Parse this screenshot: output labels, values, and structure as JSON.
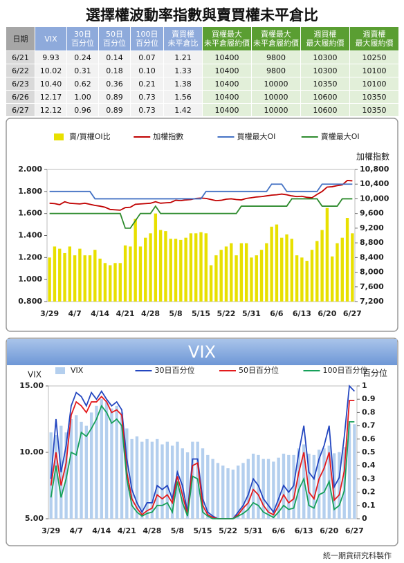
{
  "title": "選擇權波動率指數與賣買權未平倉比",
  "table": {
    "header": [
      "日期",
      "VIX",
      "30日\n百分位",
      "50日\n百分位",
      "100日\n百分位",
      "賣買權\n未平倉比",
      "買權最大\n未平倉履約價",
      "賣權最大\n未平倉履約價",
      "週買權\n最大履約價",
      "週賣權\n最大履約價"
    ],
    "rows": [
      [
        "6/21",
        "9.93",
        "0.24",
        "0.14",
        "0.07",
        "1.21",
        "10400",
        "9800",
        "10300",
        "10250"
      ],
      [
        "6/22",
        "10.02",
        "0.31",
        "0.18",
        "0.10",
        "1.33",
        "10400",
        "9800",
        "10300",
        "10100"
      ],
      [
        "6/23",
        "10.40",
        "0.62",
        "0.36",
        "0.21",
        "1.38",
        "10400",
        "10000",
        "10350",
        "10100"
      ],
      [
        "6/26",
        "12.17",
        "1.00",
        "0.89",
        "0.73",
        "1.56",
        "10400",
        "10000",
        "10600",
        "10350"
      ],
      [
        "6/27",
        "12.12",
        "0.96",
        "0.89",
        "0.73",
        "1.42",
        "10400",
        "10000",
        "10600",
        "10350"
      ]
    ]
  },
  "chart_data": [
    {
      "type": "combo",
      "y2label": "加權指數",
      "categories": [
        "3/29",
        null,
        null,
        null,
        null,
        "4/7",
        null,
        null,
        null,
        null,
        "4/14",
        null,
        null,
        null,
        null,
        "4/21",
        null,
        null,
        null,
        null,
        "4/28",
        null,
        null,
        null,
        null,
        "5/8",
        null,
        null,
        null,
        null,
        "5/15",
        null,
        null,
        null,
        null,
        "5/22",
        null,
        null,
        null,
        null,
        "5/31",
        null,
        null,
        null,
        null,
        "6/6",
        null,
        null,
        null,
        null,
        "6/13",
        null,
        null,
        null,
        null,
        "6/20",
        null,
        null,
        null,
        null,
        "6/27"
      ],
      "ylim": [
        0.8,
        2.0
      ],
      "yticks": [
        {
          "value": 0.8,
          "label": "0.800"
        },
        {
          "value": 1.0,
          "label": "1.000"
        },
        {
          "value": 1.2,
          "label": "1.200"
        },
        {
          "value": 1.4,
          "label": "1.400"
        },
        {
          "value": 1.6,
          "label": "1.600"
        },
        {
          "value": 1.8,
          "label": "1.800"
        },
        {
          "value": 2.0,
          "label": "2.000"
        }
      ],
      "y2lim": [
        7200,
        10800
      ],
      "y2ticks": [
        {
          "value": 7200,
          "label": "7,200"
        },
        {
          "value": 7600,
          "label": "7,600"
        },
        {
          "value": 8000,
          "label": "8,000"
        },
        {
          "value": 8400,
          "label": "8,400"
        },
        {
          "value": 8800,
          "label": "8,800"
        },
        {
          "value": 9200,
          "label": "9,200"
        },
        {
          "value": 9600,
          "label": "9,600"
        },
        {
          "value": 10000,
          "label": "10,000"
        },
        {
          "value": 10400,
          "label": "10,400"
        },
        {
          "value": 10800,
          "label": "10,800"
        }
      ],
      "series": [
        {
          "name": "賣/買權OI比",
          "type": "bar",
          "color": "#e8e000",
          "values": [
            1.2,
            1.3,
            1.28,
            1.24,
            1.3,
            1.22,
            1.28,
            1.22,
            1.22,
            1.27,
            1.19,
            1.15,
            1.13,
            1.15,
            1.15,
            1.31,
            1.3,
            1.55,
            1.3,
            1.38,
            1.42,
            1.6,
            1.45,
            1.44,
            1.37,
            1.37,
            1.36,
            1.38,
            1.42,
            1.42,
            1.43,
            1.42,
            1.13,
            1.22,
            1.27,
            1.3,
            1.33,
            1.22,
            1.33,
            1.33,
            1.2,
            1.22,
            1.27,
            1.33,
            1.48,
            1.5,
            1.38,
            1.41,
            1.37,
            1.22,
            1.2,
            1.17,
            1.27,
            1.35,
            1.45,
            1.65,
            1.21,
            1.33,
            1.38,
            1.56,
            1.42
          ]
        },
        {
          "name": "加權指數",
          "type": "line",
          "axis": "y2",
          "color": "#c00000",
          "values": [
            9880,
            9870,
            9840,
            9920,
            9880,
            9870,
            9860,
            9880,
            9850,
            9820,
            9800,
            9770,
            9710,
            9700,
            9690,
            9760,
            9770,
            9850,
            9860,
            9870,
            9880,
            9920,
            9880,
            9890,
            9900,
            9960,
            9950,
            9970,
            9980,
            10010,
            10020,
            10010,
            9980,
            9950,
            9960,
            9990,
            10000,
            9980,
            9970,
            10010,
            10030,
            10050,
            10060,
            10080,
            10100,
            10110,
            10130,
            10110,
            10080,
            10060,
            10070,
            10040,
            10030,
            10120,
            10200,
            10320,
            10330,
            10360,
            10380,
            10500,
            10490
          ]
        },
        {
          "name": "買權最大OI",
          "type": "line",
          "axis": "y2",
          "color": "#4472c4",
          "values": [
            10200,
            10200,
            10200,
            10200,
            10200,
            10200,
            10200,
            10200,
            10200,
            10000,
            10000,
            10000,
            10000,
            10000,
            10000,
            10000,
            10000,
            10000,
            10000,
            10000,
            10000,
            10000,
            10000,
            10000,
            10000,
            10000,
            10000,
            10000,
            10000,
            10000,
            10000,
            10200,
            10200,
            10200,
            10200,
            10200,
            10200,
            10200,
            10200,
            10200,
            10200,
            10200,
            10200,
            10200,
            10400,
            10400,
            10400,
            10200,
            10200,
            10200,
            10200,
            10200,
            10200,
            10200,
            10400,
            10400,
            10400,
            10400,
            10400,
            10400,
            10400
          ]
        },
        {
          "name": "賣權最大OI",
          "type": "line",
          "axis": "y2",
          "color": "#2e8b2e",
          "values": [
            9600,
            9600,
            9600,
            9600,
            9600,
            9600,
            9600,
            9600,
            9600,
            9600,
            9600,
            9600,
            9600,
            9600,
            9600,
            9200,
            9200,
            9400,
            9600,
            9600,
            9600,
            9800,
            9600,
            9600,
            9600,
            9600,
            9600,
            9600,
            9600,
            9600,
            9600,
            9600,
            9600,
            9600,
            9600,
            9600,
            9600,
            9600,
            9800,
            9800,
            9800,
            9800,
            9800,
            9800,
            9800,
            9800,
            9800,
            9800,
            10000,
            10000,
            10000,
            10000,
            10000,
            10000,
            9800,
            9800,
            9800,
            9800,
            10000,
            10000,
            10000
          ]
        }
      ]
    },
    {
      "type": "combo",
      "title": "VIX",
      "ylabel": "VIX",
      "y2label": "百分位",
      "categories": [
        "3/29",
        null,
        null,
        null,
        null,
        "4/7",
        null,
        null,
        null,
        null,
        "4/14",
        null,
        null,
        null,
        null,
        "4/21",
        null,
        null,
        null,
        null,
        "4/28",
        null,
        null,
        null,
        null,
        "5/8",
        null,
        null,
        null,
        null,
        "5/15",
        null,
        null,
        null,
        null,
        "5/22",
        null,
        null,
        null,
        null,
        "5/31",
        null,
        null,
        null,
        null,
        "6/6",
        null,
        null,
        null,
        null,
        "6/13",
        null,
        null,
        null,
        null,
        "6/20",
        null,
        null,
        null,
        null,
        "6/27"
      ],
      "ylim": [
        5,
        15
      ],
      "yticks": [
        {
          "value": 5,
          "label": "5.00"
        },
        {
          "value": 10,
          "label": "10.00"
        },
        {
          "value": 15,
          "label": "15.00"
        }
      ],
      "y2lim": [
        0,
        1
      ],
      "y2ticks": [
        0,
        0.1,
        0.2,
        0.3,
        0.4,
        0.5,
        0.6,
        0.7,
        0.8,
        0.9,
        1
      ],
      "series": [
        {
          "name": "VIX",
          "type": "bar",
          "color": "#b4cfee",
          "values": [
            11.5,
            11.3,
            12.0,
            11.5,
            12.5,
            12.8,
            12.3,
            12.0,
            13.0,
            13.5,
            14.0,
            13.8,
            13.3,
            13.5,
            13.0,
            11.8,
            11.0,
            11.2,
            10.8,
            11.0,
            10.8,
            11.0,
            10.6,
            10.8,
            10.5,
            10.8,
            10.3,
            10.0,
            10.8,
            10.8,
            10.3,
            9.8,
            9.5,
            9.2,
            9.0,
            8.8,
            8.7,
            9.0,
            9.2,
            9.5,
            9.9,
            9.8,
            9.5,
            9.5,
            9.3,
            9.6,
            9.9,
            9.8,
            9.8,
            10.3,
            10.6,
            9.9,
            9.8,
            10.2,
            10.3,
            10.5,
            9.93,
            10.02,
            10.4,
            12.17,
            12.12
          ]
        },
        {
          "name": "30日百分位",
          "type": "line",
          "axis": "y2",
          "color": "#2346c0",
          "values": [
            0.3,
            0.75,
            0.35,
            0.55,
            0.85,
            0.95,
            0.92,
            0.85,
            0.95,
            0.9,
            0.96,
            0.9,
            0.85,
            0.88,
            0.82,
            0.45,
            0.22,
            0.12,
            0.05,
            0.12,
            0.12,
            0.25,
            0.22,
            0.25,
            0.15,
            0.35,
            0.25,
            0.05,
            0.45,
            0.45,
            0.15,
            0.05,
            0.02,
            0.0,
            0.0,
            0.0,
            0.0,
            0.05,
            0.1,
            0.18,
            0.3,
            0.25,
            0.15,
            0.1,
            0.05,
            0.15,
            0.25,
            0.2,
            0.25,
            0.5,
            0.7,
            0.35,
            0.3,
            0.45,
            0.55,
            0.7,
            0.24,
            0.31,
            0.62,
            1.0,
            0.96
          ]
        },
        {
          "name": "50日百分位",
          "type": "line",
          "axis": "y2",
          "color": "#e31a1c",
          "values": [
            0.25,
            0.5,
            0.25,
            0.42,
            0.78,
            0.88,
            0.85,
            0.8,
            0.88,
            0.88,
            0.92,
            0.88,
            0.8,
            0.82,
            0.78,
            0.35,
            0.15,
            0.08,
            0.03,
            0.06,
            0.08,
            0.18,
            0.15,
            0.18,
            0.12,
            0.32,
            0.18,
            0.03,
            0.4,
            0.42,
            0.1,
            0.03,
            0.01,
            0.0,
            0.0,
            0.0,
            0.0,
            0.03,
            0.08,
            0.12,
            0.22,
            0.18,
            0.1,
            0.05,
            0.03,
            0.1,
            0.18,
            0.12,
            0.15,
            0.35,
            0.5,
            0.2,
            0.15,
            0.3,
            0.38,
            0.5,
            0.14,
            0.18,
            0.36,
            0.89,
            0.89
          ]
        },
        {
          "name": "100日百分位",
          "type": "line",
          "axis": "y2",
          "color": "#16a05a",
          "values": [
            0.16,
            0.4,
            0.16,
            0.3,
            0.5,
            0.48,
            0.65,
            0.62,
            0.68,
            0.75,
            0.85,
            0.8,
            0.72,
            0.75,
            0.7,
            0.3,
            0.1,
            0.05,
            0.02,
            0.04,
            0.05,
            0.1,
            0.1,
            0.12,
            0.05,
            0.28,
            0.12,
            0.02,
            0.32,
            0.3,
            0.05,
            0.02,
            0.0,
            0.0,
            0.0,
            0.0,
            0.0,
            0.02,
            0.04,
            0.07,
            0.12,
            0.1,
            0.05,
            0.03,
            0.01,
            0.05,
            0.1,
            0.07,
            0.08,
            0.22,
            0.3,
            0.1,
            0.08,
            0.18,
            0.2,
            0.28,
            0.07,
            0.1,
            0.21,
            0.73,
            0.73
          ]
        }
      ]
    }
  ],
  "footer": "統一期貨研究科製作"
}
